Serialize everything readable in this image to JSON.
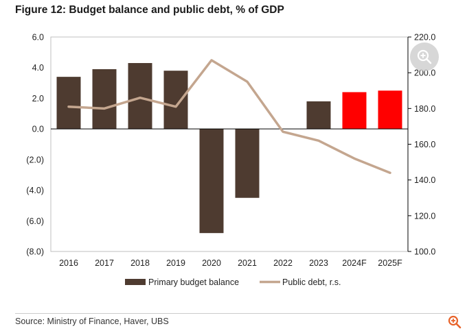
{
  "title": "Figure 12: Budget balance and public debt, % of GDP",
  "source": "Source: Ministry of Finance, Haver, UBS",
  "colors": {
    "bar": "#4e3b30",
    "bar_forecast": "#ff0000",
    "line": "#c4a68f",
    "axis": "#000000",
    "frame": "#bfbfbf"
  },
  "chart_data": {
    "type": "bar",
    "title": "Budget balance and public debt, % of GDP",
    "categories": [
      "2016",
      "2017",
      "2018",
      "2019",
      "2020",
      "2021",
      "2022",
      "2023",
      "2024F",
      "2025F"
    ],
    "series": [
      {
        "name": "Primary budget balance",
        "type": "bar",
        "axis": "left",
        "values": [
          3.4,
          3.9,
          4.3,
          3.8,
          -6.8,
          -4.5,
          0.0,
          1.8,
          2.4,
          2.5
        ],
        "forecast": [
          false,
          false,
          false,
          false,
          false,
          false,
          false,
          false,
          true,
          true
        ]
      },
      {
        "name": "Public debt, r.s.",
        "type": "line",
        "axis": "right",
        "values": [
          181,
          180,
          186,
          181,
          207,
          195,
          167,
          162,
          152,
          144
        ]
      }
    ],
    "y_left": {
      "ylim": [
        -8,
        6
      ],
      "ticks": [
        6,
        4,
        2,
        0,
        -2,
        -4,
        -6,
        -8
      ],
      "tick_labels": [
        "6.0",
        "4.0",
        "2.0",
        "0.0",
        "(2.0)",
        "(4.0)",
        "(6.0)",
        "(8.0)"
      ]
    },
    "y_right": {
      "ylim": [
        100,
        220
      ],
      "ticks": [
        220,
        200,
        180,
        160,
        140,
        120,
        100
      ],
      "tick_labels": [
        "220.0",
        "200.0",
        "180.0",
        "160.0",
        "140.0",
        "120.0",
        "100.0"
      ]
    },
    "legend": {
      "position": "bottom",
      "entries": [
        "Primary budget balance",
        "Public debt, r.s."
      ]
    }
  }
}
